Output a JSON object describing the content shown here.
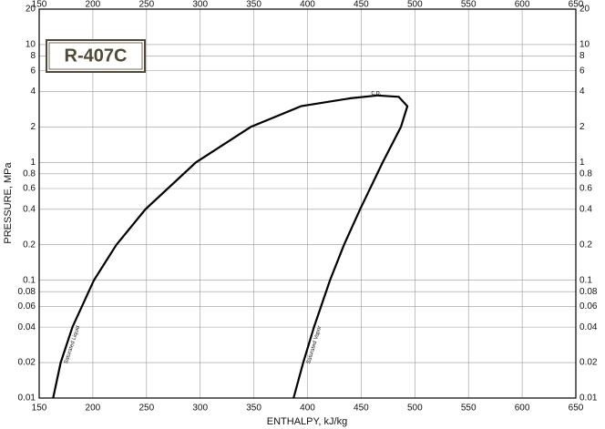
{
  "chart_data": {
    "type": "line",
    "title": "R-407C",
    "x_label": "ENTHALPY, kJ/kg",
    "y_label": "PRESSURE, MPa",
    "xlim": [
      150,
      650
    ],
    "xticks": [
      150,
      200,
      250,
      300,
      350,
      400,
      450,
      500,
      550,
      600,
      650
    ],
    "ylim": [
      0.01,
      20
    ],
    "yticks": [
      0.01,
      0.02,
      0.04,
      0.06,
      0.08,
      0.1,
      0.2,
      0.4,
      0.6,
      0.8,
      1,
      2,
      4,
      6,
      8,
      10,
      20
    ],
    "y_scale": "log",
    "grid": true,
    "annotations": [
      "c.p."
    ],
    "series": [
      {
        "name": "Saturated Liquid",
        "color": "#000000",
        "x": [
          163,
          170,
          181,
          201,
          222,
          249,
          296,
          347,
          394,
          440,
          465
        ],
        "values": [
          0.01,
          0.02,
          0.04,
          0.1,
          0.2,
          0.4,
          1,
          2,
          3,
          3.5,
          3.7
        ]
      },
      {
        "name": "Saturated Vapor",
        "color": "#000000",
        "x": [
          387,
          396,
          406,
          421,
          434,
          449,
          470,
          487,
          493,
          485,
          465
        ],
        "values": [
          0.01,
          0.02,
          0.04,
          0.1,
          0.2,
          0.4,
          1,
          2,
          3,
          3.6,
          3.7
        ]
      }
    ]
  }
}
